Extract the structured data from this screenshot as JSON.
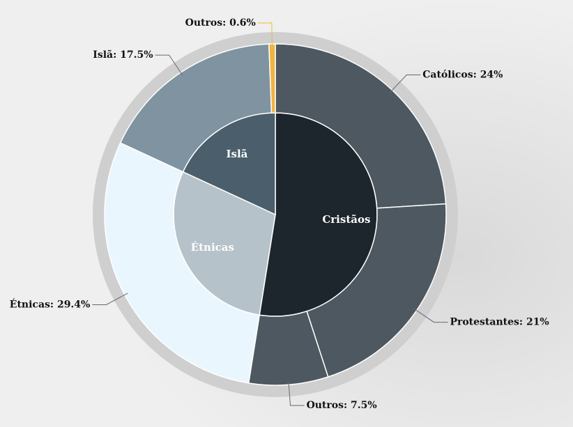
{
  "chart_data": {
    "type": "sunburst",
    "groups": [
      {
        "name": "Cristãos",
        "color": "#1c262c",
        "children": {
          "labels": [
            "Católicos: 24%",
            "Protestantes: 21%",
            "Outros: 7.5%"
          ],
          "values": [
            24,
            21,
            7.5
          ],
          "colors": [
            "#4d5860",
            "#4d5860",
            "#4d5860"
          ]
        }
      },
      {
        "name": "Étnicas",
        "color": "#b6c2c9",
        "children": {
          "labels": [
            "Étnicas: 29.4%"
          ],
          "values": [
            29.4
          ],
          "colors": [
            "#eaf6fd"
          ]
        }
      },
      {
        "name": "Islã",
        "color": "#4a5e6b",
        "children": {
          "labels": [
            "Islã: 17.5%",
            "Outros: 0.6%"
          ],
          "values": [
            17.5,
            0.6
          ],
          "colors": [
            "#7f93a0",
            "#f0b442"
          ]
        }
      }
    ]
  }
}
